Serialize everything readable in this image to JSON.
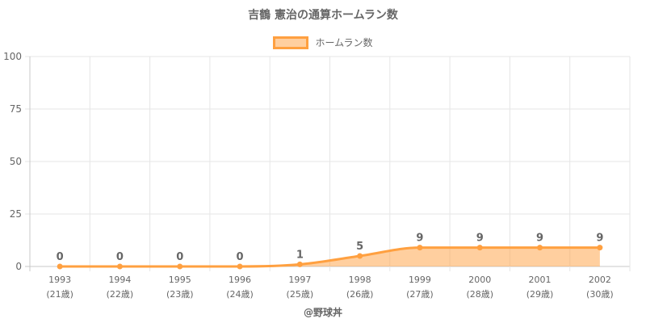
{
  "chart_data": {
    "type": "area",
    "title": "吉鶴 憲治の通算ホームラン数",
    "legend": {
      "label": "ホームラン数",
      "placement": "top-center"
    },
    "categories": [
      "1993",
      "1994",
      "1995",
      "1996",
      "1997",
      "1998",
      "1999",
      "2000",
      "2001",
      "2002"
    ],
    "sublabels": [
      "(21歳)",
      "(22歳)",
      "(23歳)",
      "(24歳)",
      "(25歳)",
      "(26歳)",
      "(27歳)",
      "(28歳)",
      "(29歳)",
      "(30歳)"
    ],
    "series": [
      {
        "name": "ホームラン数",
        "values": [
          0,
          0,
          0,
          0,
          1,
          5,
          9,
          9,
          9,
          9
        ]
      }
    ],
    "y_ticks": [
      "0",
      "25",
      "50",
      "75",
      "100"
    ],
    "ylim": [
      0,
      100
    ],
    "grid": true,
    "colors": {
      "line": "#ffa040",
      "fill": "rgba(255,160,64,0.5)",
      "grid": "#e6e6e6",
      "text": "#666666"
    }
  },
  "credit": "@野球丼"
}
